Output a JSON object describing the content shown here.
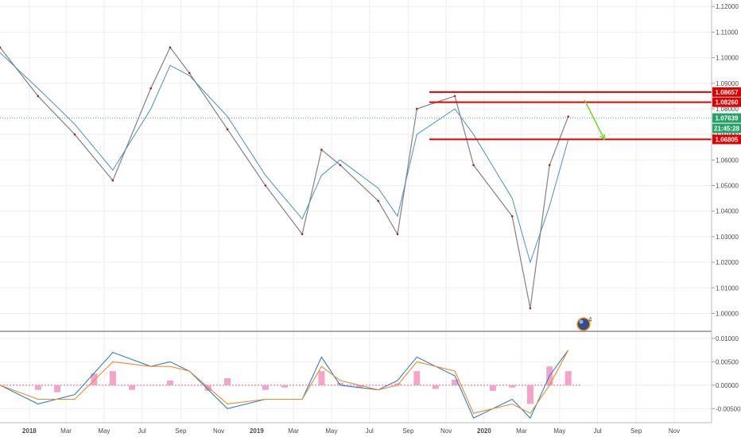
{
  "chart_data": {
    "type": "line",
    "price_panel": {
      "ylim": [
        0.993,
        1.121
      ],
      "y_ticks": [
        "1.12000",
        "1.11000",
        "1.10000",
        "1.09000",
        "1.08000",
        "1.07000",
        "1.06000",
        "1.05000",
        "1.04000",
        "1.03000",
        "1.02000",
        "1.01000",
        "1.00000"
      ],
      "series": [
        {
          "role": "price",
          "color": "#8a8a8a",
          "x": [
            "2017-11",
            "2018-01",
            "2018-03",
            "2018-05",
            "2018-07",
            "2018-08",
            "2018-09",
            "2018-11",
            "2019-01",
            "2019-03",
            "2019-04",
            "2019-05",
            "2019-07",
            "2019-08",
            "2019-09",
            "2019-11",
            "2019-12",
            "2020-02",
            "2020-03",
            "2020-04",
            "2020-05"
          ],
          "values": [
            1.104,
            1.085,
            1.07,
            1.052,
            1.088,
            1.104,
            1.094,
            1.072,
            1.05,
            1.031,
            1.064,
            1.058,
            1.044,
            1.031,
            1.08,
            1.085,
            1.058,
            1.038,
            1.002,
            1.058,
            1.077
          ]
        },
        {
          "role": "moving-average",
          "color": "#4a90c8",
          "x": [
            "2017-11",
            "2018-01",
            "2018-03",
            "2018-05",
            "2018-07",
            "2018-08",
            "2018-09",
            "2018-11",
            "2019-01",
            "2019-03",
            "2019-04",
            "2019-05",
            "2019-07",
            "2019-08",
            "2019-09",
            "2019-11",
            "2019-12",
            "2020-02",
            "2020-03",
            "2020-04",
            "2020-05"
          ],
          "values": [
            1.102,
            1.088,
            1.074,
            1.056,
            1.08,
            1.097,
            1.093,
            1.077,
            1.054,
            1.037,
            1.054,
            1.06,
            1.049,
            1.038,
            1.07,
            1.08,
            1.07,
            1.045,
            1.02,
            1.042,
            1.068
          ]
        }
      ],
      "horizontal_levels": [
        {
          "value": 1.08657,
          "label": "1.08657",
          "color": "#e00000"
        },
        {
          "value": 1.0826,
          "label": "1.08260",
          "color": "#e00000"
        },
        {
          "value": 1.06805,
          "label": "1.06805",
          "color": "#e00000"
        }
      ],
      "current_price": {
        "value": 1.07639,
        "label": "1.07639",
        "color": "#26a269"
      },
      "countdown": {
        "label": "21:45:28",
        "color": "#26a269"
      },
      "arrow": {
        "from": {
          "x": "2020-06-10",
          "y": 1.0835
        },
        "to": {
          "x": "2020-07-12",
          "y": 1.068
        },
        "color": "#66dd22"
      }
    },
    "indicator_panel": {
      "ylim": [
        -0.008,
        0.0115
      ],
      "y_ticks": [
        "0.01000",
        "0.00500",
        "0.00000",
        "-0.00500"
      ],
      "line1": {
        "color": "#2d7fd6",
        "x": [
          "2017-11",
          "2018-01",
          "2018-03",
          "2018-05",
          "2018-07",
          "2018-08",
          "2018-09",
          "2018-11",
          "2019-01",
          "2019-03",
          "2019-04",
          "2019-05",
          "2019-07",
          "2019-08",
          "2019-09",
          "2019-11",
          "2019-12",
          "2020-02",
          "2020-03",
          "2020-04",
          "2020-05"
        ],
        "values": [
          0.0,
          -0.004,
          -0.002,
          0.007,
          0.004,
          0.005,
          0.003,
          -0.005,
          -0.003,
          -0.003,
          0.006,
          0.0,
          -0.001,
          0.001,
          0.006,
          0.002,
          -0.007,
          -0.003,
          -0.007,
          0.002,
          0.0075
        ]
      },
      "line2": {
        "color": "#f08a24",
        "x": [
          "2017-11",
          "2018-01",
          "2018-03",
          "2018-05",
          "2018-07",
          "2018-08",
          "2018-09",
          "2018-11",
          "2019-01",
          "2019-03",
          "2019-04",
          "2019-05",
          "2019-07",
          "2019-08",
          "2019-09",
          "2019-11",
          "2019-12",
          "2020-02",
          "2020-03",
          "2020-04",
          "2020-05"
        ],
        "values": [
          0.0,
          -0.003,
          -0.003,
          0.005,
          0.004,
          0.004,
          0.003,
          -0.004,
          -0.003,
          -0.003,
          0.004,
          0.001,
          -0.001,
          0.0,
          0.005,
          0.003,
          -0.006,
          -0.004,
          -0.006,
          0.0,
          0.0075
        ]
      },
      "histogram": {
        "color": "#f5a3c7",
        "x": [
          "2018-01",
          "2018-02",
          "2018-04",
          "2018-05",
          "2018-06",
          "2018-08",
          "2018-10",
          "2018-11",
          "2019-01",
          "2019-02",
          "2019-04",
          "2019-05",
          "2019-06",
          "2019-08",
          "2019-09",
          "2019-10",
          "2019-11",
          "2020-01",
          "2020-02",
          "2020-03",
          "2020-04",
          "2020-05"
        ],
        "values": [
          -0.001,
          -0.0015,
          0.0025,
          0.003,
          -0.001,
          0.001,
          -0.0012,
          0.0015,
          -0.001,
          -0.0005,
          0.003,
          0.0005,
          -0.0006,
          0.0004,
          0.003,
          -0.0008,
          0.0012,
          -0.0012,
          -0.0005,
          -0.004,
          0.004,
          0.003
        ]
      }
    },
    "x_ticks": [
      {
        "date": "2018-01-01",
        "label": "2018",
        "bold": true
      },
      {
        "date": "2018-03-01",
        "label": "Mar"
      },
      {
        "date": "2018-05-01",
        "label": "May"
      },
      {
        "date": "2018-07-01",
        "label": "Jul"
      },
      {
        "date": "2018-09-01",
        "label": "Sep"
      },
      {
        "date": "2018-11-01",
        "label": "Nov"
      },
      {
        "date": "2019-01-01",
        "label": "2019",
        "bold": true
      },
      {
        "date": "2019-03-01",
        "label": "Mar"
      },
      {
        "date": "2019-05-01",
        "label": "May"
      },
      {
        "date": "2019-07-01",
        "label": "Jul"
      },
      {
        "date": "2019-09-01",
        "label": "Sep"
      },
      {
        "date": "2019-11-01",
        "label": "Nov"
      },
      {
        "date": "2020-01-01",
        "label": "2020",
        "bold": true
      },
      {
        "date": "2020-03-01",
        "label": "Mar"
      },
      {
        "date": "2020-05-01",
        "label": "May"
      },
      {
        "date": "2020-07-01",
        "label": "Jul"
      },
      {
        "date": "2020-09-01",
        "label": "Sep"
      },
      {
        "date": "2020-11-01",
        "label": "Nov"
      }
    ],
    "grid": true,
    "avatar_badge": {
      "icon": "globe-avatar-icon",
      "count": "4"
    }
  }
}
